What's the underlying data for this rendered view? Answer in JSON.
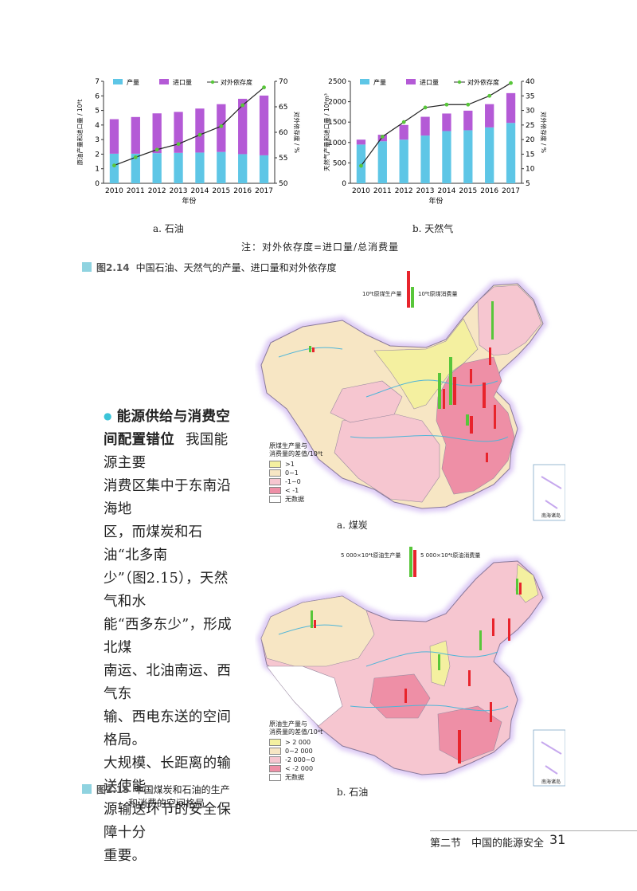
{
  "charts": [
    {
      "subtitle": "a. 石油",
      "legend": [
        "产量",
        "进口量",
        "对外依存度"
      ],
      "ylabel_left": "原油产量和进口量 / 10⁸t",
      "ylabel_right": "对外依存度 / %",
      "xlabel": "年份",
      "left_ticks": [
        "0",
        "1",
        "2",
        "3",
        "4",
        "5",
        "6",
        "7"
      ],
      "right_ticks": [
        "50",
        "55",
        "60",
        "65",
        "70"
      ]
    },
    {
      "subtitle": "b. 天然气",
      "legend": [
        "产量",
        "进口量",
        "对外依存度"
      ],
      "ylabel_left": "天然气产量和进口量 / 10⁸m³",
      "ylabel_right": "对外依存度 / %",
      "xlabel": "年份",
      "left_ticks": [
        "0",
        "500",
        "1000",
        "1500",
        "2000",
        "2500"
      ],
      "right_ticks": [
        "5",
        "10",
        "15",
        "20",
        "25",
        "30",
        "35",
        "40"
      ]
    }
  ],
  "chart_data": [
    {
      "type": "bar",
      "categories": [
        "2010",
        "2011",
        "2012",
        "2013",
        "2014",
        "2015",
        "2016",
        "2017"
      ],
      "series": [
        {
          "name": "产量",
          "values": [
            2.03,
            2.03,
            2.07,
            2.09,
            2.11,
            2.15,
            2.0,
            1.92
          ]
        },
        {
          "name": "进口量",
          "values": [
            2.37,
            2.52,
            2.73,
            2.81,
            3.02,
            3.28,
            3.8,
            4.1
          ]
        },
        {
          "name": "对外依存度",
          "values": [
            53.5,
            55.1,
            56.6,
            57.7,
            59.5,
            61.2,
            65.3,
            68.8
          ]
        }
      ],
      "ylim": [
        0,
        7
      ],
      "y2lim": [
        50,
        70
      ]
    },
    {
      "type": "bar",
      "categories": [
        "2010",
        "2011",
        "2012",
        "2013",
        "2014",
        "2015",
        "2016",
        "2017"
      ],
      "series": [
        {
          "name": "产量",
          "values": [
            950,
            1030,
            1070,
            1170,
            1280,
            1300,
            1370,
            1480
          ]
        },
        {
          "name": "进口量",
          "values": [
            120,
            160,
            360,
            460,
            430,
            480,
            570,
            730
          ]
        },
        {
          "name": "对外依存度",
          "values": [
            11,
            21,
            26,
            31,
            32,
            32,
            35,
            39.4
          ]
        }
      ],
      "ylim": [
        0,
        2500
      ],
      "y2lim": [
        5,
        40
      ]
    }
  ],
  "note": "注：对外依存度=进口量/总消费量",
  "fig214_num": "图2.14",
  "fig214_text": "中国石油、天然气的产量、进口量和对外依存度",
  "heading": "能源供给与消费空间配置错位",
  "body_lines": [
    "我国能源主要",
    "消费区集中于东南沿海地",
    "区，而煤炭和石油“北多南",
    "少”（图2.15），天然气和水",
    "能“西多东少”，形成北煤",
    "南运、北油南运、西气东",
    "输、西电东送的空间格局。",
    "大规模、长距离的输送使能",
    "源输送环节的安全保障十分",
    "重要。"
  ],
  "heading_line1": "能源供给与消费空",
  "heading_line2": "间配置错位",
  "maps": [
    {
      "subtitle": "a. 煤炭",
      "scale_left": "10⁸t原煤生产量",
      "scale_right": "10⁸t原煤消费量",
      "legend_title_1": "原煤生产量与",
      "legend_title_2": "消费量的差值/10⁸t",
      "legend_items": [
        {
          "label": ">1",
          "color": "#f4f0a0"
        },
        {
          "label": "0~1",
          "color": "#f7e6c4"
        },
        {
          "label": "-1~0",
          "color": "#f6c6d0"
        },
        {
          "label": "< -1",
          "color": "#ee8fa6"
        },
        {
          "label": "无数据",
          "color": "#ffffff"
        }
      ],
      "inset": "南海诸岛"
    },
    {
      "subtitle": "b. 石油",
      "scale_left": "5 000×10⁴t原油生产量",
      "scale_right": "5 000×10⁴t原油消费量",
      "legend_title_1": "原油生产量与",
      "legend_title_2": "消费量的差值/10⁴t",
      "legend_items": [
        {
          "label": "> 2 000",
          "color": "#f4f0a0"
        },
        {
          "label": "0~2 000",
          "color": "#f7e6c4"
        },
        {
          "label": "-2 000~0",
          "color": "#f6c6d0"
        },
        {
          "label": "< -2 000",
          "color": "#ee8fa6"
        },
        {
          "label": "无数据",
          "color": "#ffffff"
        }
      ],
      "inset": "南海诸岛"
    }
  ],
  "fig215_num": "图2.15",
  "fig215_line1": "中国煤炭和石油的生产",
  "fig215_line2": "和消费的空间格局",
  "footer_section": "第二节　中国的能源安全",
  "page_number": "31",
  "colors": {
    "production": "#5ec6e6",
    "imports": "#b45ad6",
    "dependency_line": "#222222",
    "dependency_marker": "#58c63a",
    "caption_square": "#8fd3e0"
  }
}
